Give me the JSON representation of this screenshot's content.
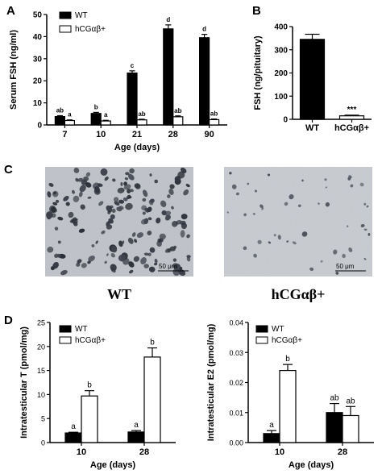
{
  "chart_data": [
    {
      "panel": "A",
      "type": "bar",
      "ylabel": "Serum FSH (ng/ml)",
      "xlabel": "Age (days)",
      "ylim": [
        0,
        50
      ],
      "yticks": [
        "0",
        "10",
        "20",
        "30",
        "40",
        "50"
      ],
      "categories": [
        "7",
        "10",
        "21",
        "28",
        "90"
      ],
      "series": [
        {
          "name": "WT",
          "color": "#000000",
          "values": [
            3.8,
            5.2,
            23.5,
            43.5,
            39.5
          ],
          "errors": [
            0.4,
            0.5,
            1.0,
            1.8,
            1.5
          ],
          "labels": [
            "ab",
            "b",
            "c",
            "d",
            "d"
          ]
        },
        {
          "name": "hCGαβ+",
          "color": "#ffffff",
          "values": [
            2.0,
            1.8,
            2.3,
            3.7,
            2.4
          ],
          "errors": [
            0.3,
            0.3,
            0.3,
            0.4,
            0.3
          ],
          "labels": [
            "a",
            "a",
            "ab",
            "ab",
            "ab"
          ]
        }
      ]
    },
    {
      "panel": "B",
      "type": "bar",
      "ylabel": "FSH (ng/pituitary)",
      "ylim": [
        0,
        400
      ],
      "yticks": [
        "0",
        "100",
        "200",
        "300",
        "400"
      ],
      "categories": [
        "WT",
        "hCGαβ+"
      ],
      "values": [
        345,
        15
      ],
      "errors": [
        22,
        3
      ],
      "colors": [
        "#000000",
        "#ffffff"
      ],
      "labels": [
        "",
        "***"
      ]
    },
    {
      "panel": "D-left",
      "type": "bar",
      "ylabel": "Intratesticular T (pmol/mg)",
      "xlabel": "Age (days)",
      "ylim": [
        0,
        25
      ],
      "yticks": [
        "0",
        "5",
        "10",
        "15",
        "20",
        "25"
      ],
      "categories": [
        "10",
        "28"
      ],
      "series": [
        {
          "name": "WT",
          "color": "#000000",
          "values": [
            2.0,
            2.2
          ],
          "errors": [
            0.15,
            0.3
          ],
          "labels": [
            "a",
            "a"
          ]
        },
        {
          "name": "hCGαβ+",
          "color": "#ffffff",
          "values": [
            9.7,
            17.8
          ],
          "errors": [
            1.1,
            1.9
          ],
          "labels": [
            "b",
            "b"
          ]
        }
      ]
    },
    {
      "panel": "D-right",
      "type": "bar",
      "ylabel": "Intratesticular E2 (pmol/mg)",
      "xlabel": "Age (days)",
      "ylim": [
        0,
        0.04
      ],
      "yticks": [
        "0.00",
        "0.01",
        "0.02",
        "0.03",
        "0.04"
      ],
      "categories": [
        "10",
        "28"
      ],
      "series": [
        {
          "name": "WT",
          "color": "#000000",
          "values": [
            0.003,
            0.01
          ],
          "errors": [
            0.001,
            0.003
          ],
          "labels": [
            "a",
            "ab"
          ]
        },
        {
          "name": "hCGαβ+",
          "color": "#ffffff",
          "values": [
            0.024,
            0.009
          ],
          "errors": [
            0.002,
            0.003
          ],
          "labels": [
            "b",
            "ab"
          ]
        }
      ]
    }
  ],
  "panels": {
    "A": "A",
    "B": "B",
    "C": "C",
    "D": "D"
  },
  "micrographs": {
    "left_caption": "WT",
    "right_caption": "hCGαβ+",
    "scale_label": "50 μm"
  }
}
